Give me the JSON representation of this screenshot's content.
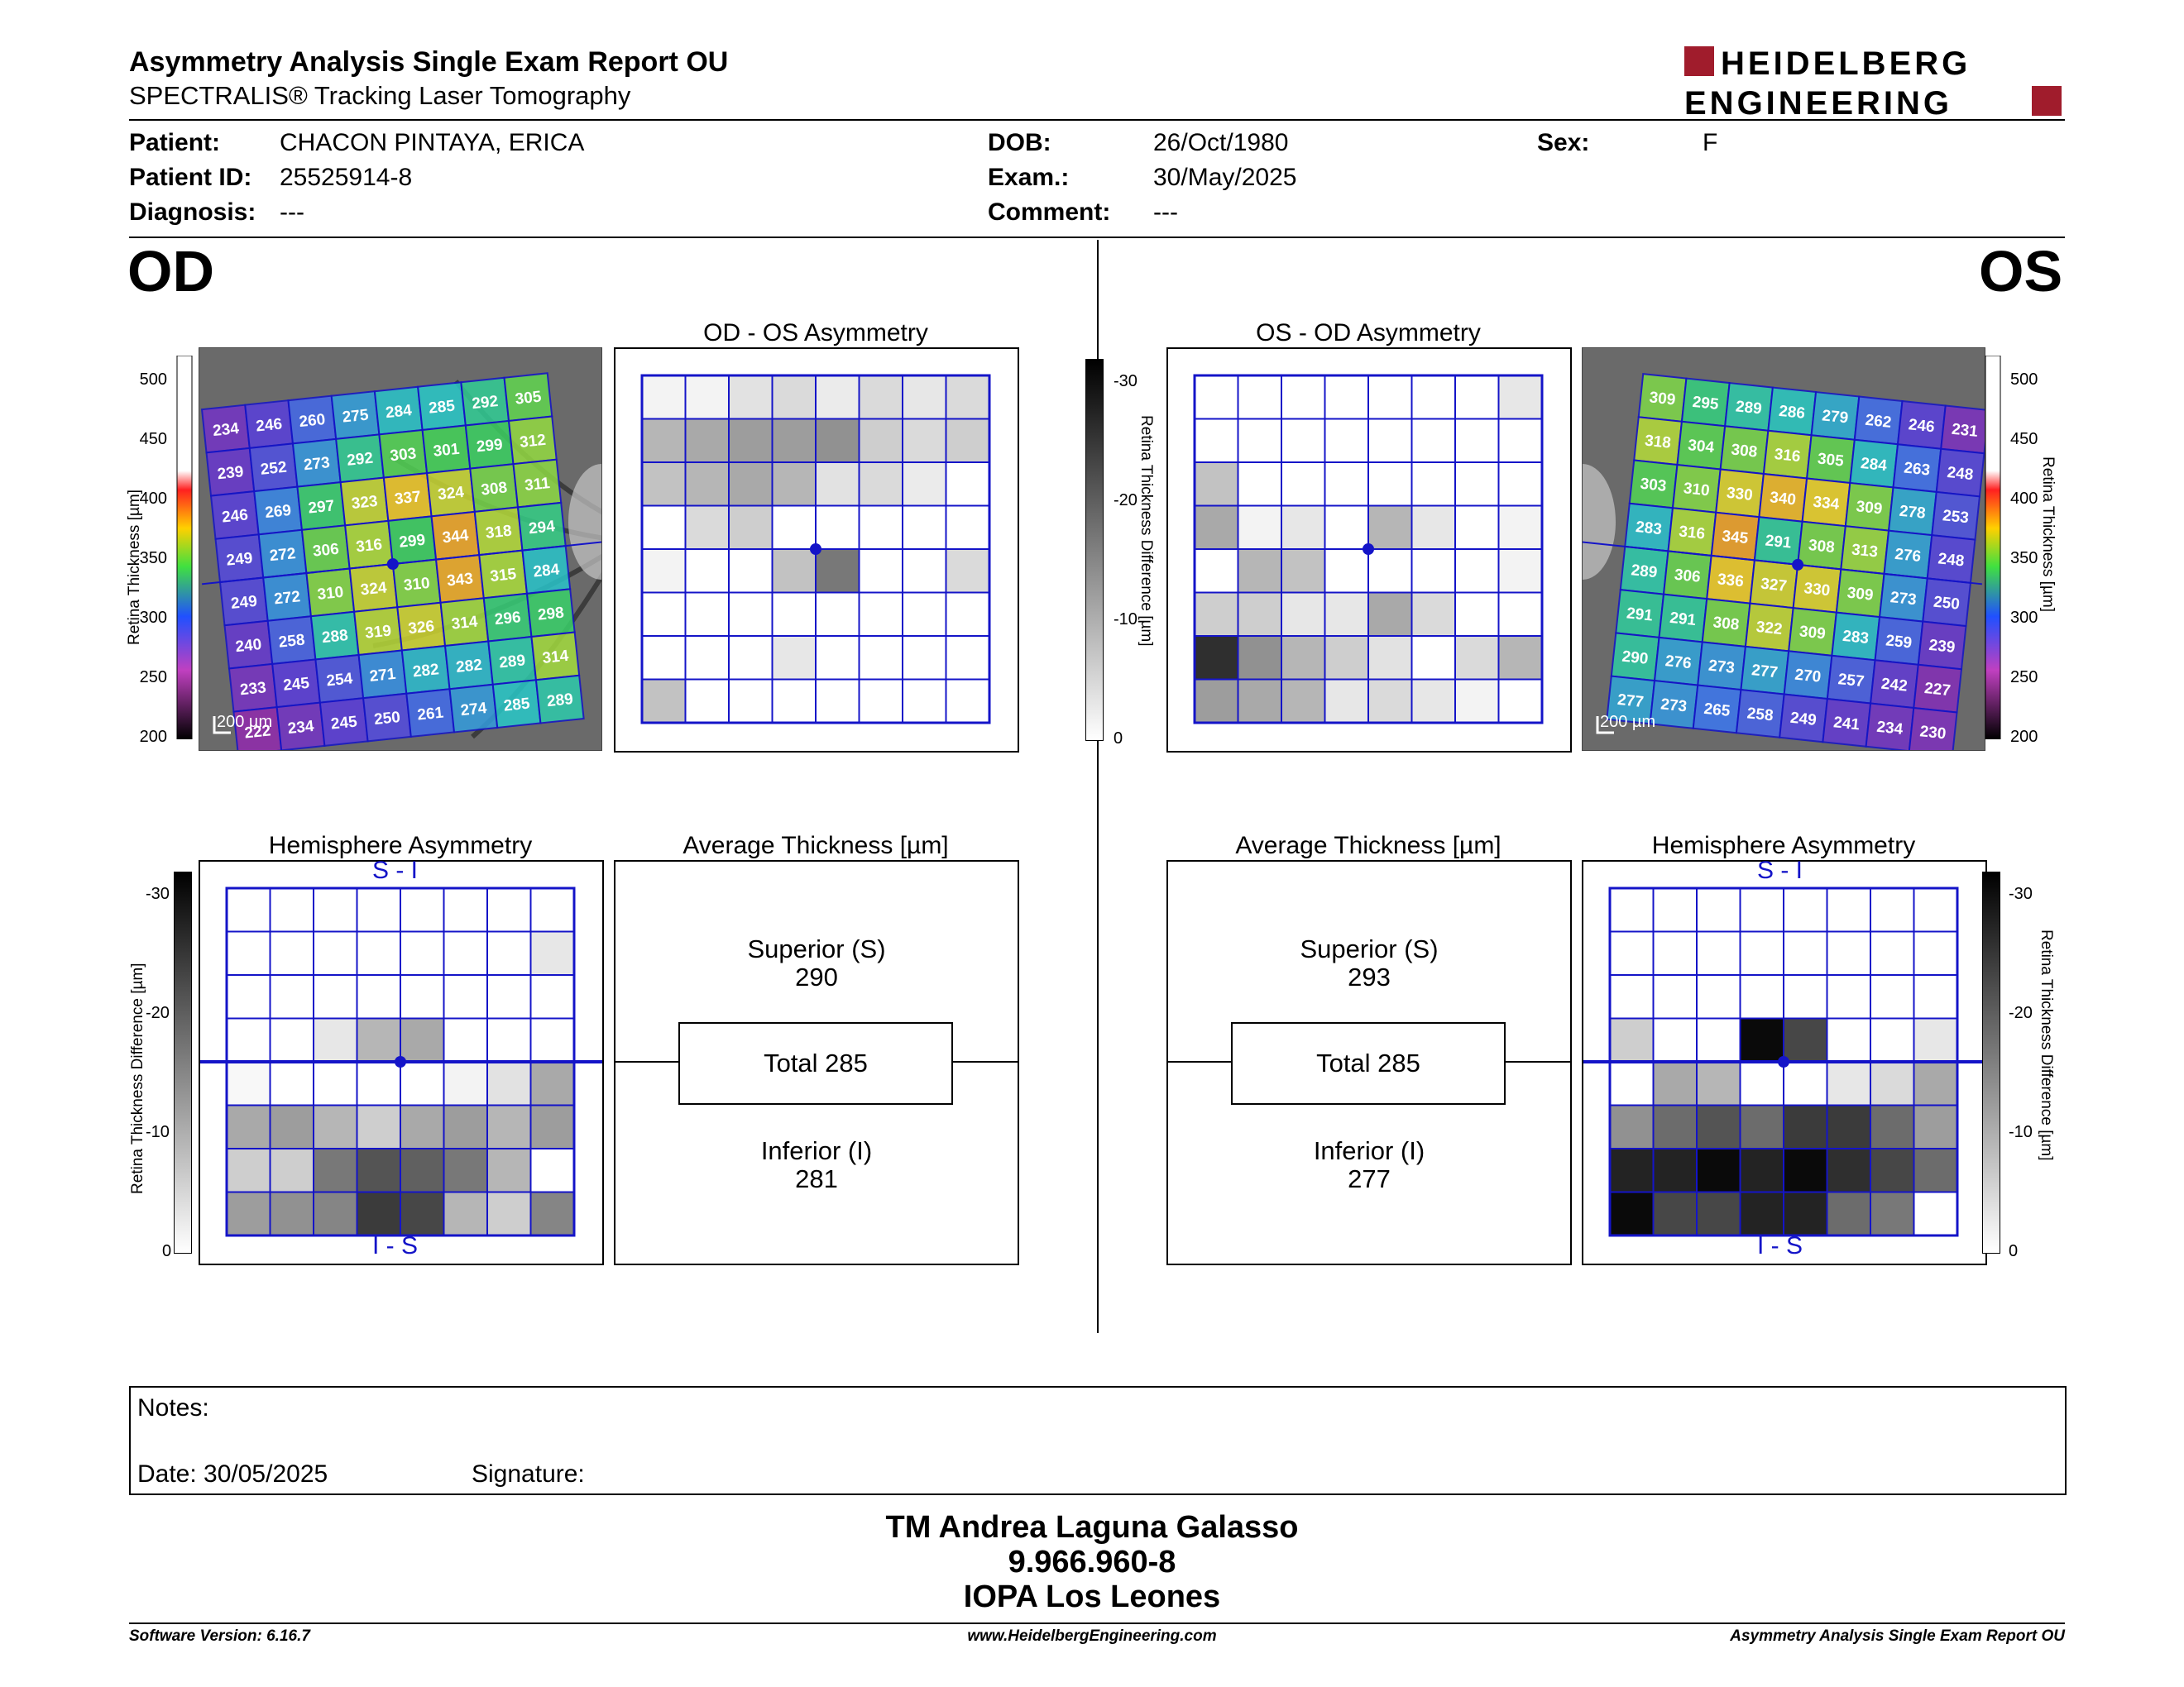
{
  "header": {
    "title": "Asymmetry Analysis Single Exam Report OU",
    "subtitle": "SPECTRALIS® Tracking Laser Tomography",
    "logo_line1": "HEIDELBERG",
    "logo_line2": "ENGINEERING"
  },
  "patient": {
    "patient_label": "Patient:",
    "patient_value": "CHACON PINTAYA, ERICA",
    "id_label": "Patient ID:",
    "id_value": "25525914-8",
    "diagnosis_label": "Diagnosis:",
    "diagnosis_value": "---",
    "dob_label": "DOB:",
    "dob_value": "26/Oct/1980",
    "exam_label": "Exam.:",
    "exam_value": "30/May/2025",
    "comment_label": "Comment:",
    "comment_value": "---",
    "sex_label": "Sex:",
    "sex_value": "F"
  },
  "od": {
    "eye_label": "OD",
    "asym_title": "OD - OS Asymmetry",
    "hemi_title": "Hemisphere Asymmetry",
    "avg_title": "Average Thickness [µm]",
    "superior_label": "Superior (S)",
    "superior_value": "290",
    "total": "Total 285",
    "inferior_label": "Inferior (I)",
    "inferior_value": "281",
    "scale_bar": "200 µm",
    "thickness_grid": [
      [
        234,
        246,
        260,
        275,
        284,
        285,
        292,
        305
      ],
      [
        239,
        252,
        273,
        292,
        303,
        301,
        299,
        312
      ],
      [
        246,
        269,
        297,
        323,
        337,
        324,
        308,
        311
      ],
      [
        249,
        272,
        306,
        316,
        299,
        344,
        318,
        294
      ],
      [
        249,
        272,
        310,
        324,
        310,
        343,
        315,
        284
      ],
      [
        240,
        258,
        288,
        319,
        326,
        314,
        296,
        298
      ],
      [
        233,
        245,
        254,
        271,
        282,
        282,
        289,
        314
      ],
      [
        222,
        234,
        245,
        250,
        261,
        274,
        285,
        289
      ]
    ],
    "asym_grid": [
      [
        0.05,
        0.05,
        0.12,
        0.15,
        0.08,
        0.15,
        0.1,
        0.15
      ],
      [
        0.3,
        0.35,
        0.4,
        0.4,
        0.45,
        0.2,
        0.15,
        0.2
      ],
      [
        0.25,
        0.3,
        0.35,
        0.3,
        0.12,
        0.15,
        0.08,
        0
      ],
      [
        0,
        0.15,
        0.2,
        0,
        0,
        0,
        0,
        0
      ],
      [
        0.05,
        0,
        0,
        0.25,
        0.55,
        0,
        0,
        0.15
      ],
      [
        0,
        0,
        0,
        0,
        0,
        0,
        0,
        0
      ],
      [
        0,
        0,
        0,
        0.1,
        0,
        0,
        0,
        0
      ],
      [
        0.25,
        0,
        0,
        0,
        0,
        0,
        0,
        0
      ]
    ],
    "hemi_grid": [
      [
        0,
        0,
        0,
        0,
        0,
        0,
        0,
        0
      ],
      [
        0,
        0,
        0,
        0,
        0,
        0,
        0,
        0.1
      ],
      [
        0,
        0,
        0,
        0,
        0,
        0,
        0,
        0
      ],
      [
        0,
        0,
        0.1,
        0.3,
        0.35,
        0,
        0,
        0
      ],
      [
        0.03,
        0,
        0,
        0,
        0,
        0.05,
        0.12,
        0.35
      ],
      [
        0.35,
        0.4,
        0.3,
        0.2,
        0.35,
        0.4,
        0.3,
        0.4
      ],
      [
        0.2,
        0.2,
        0.55,
        0.7,
        0.65,
        0.55,
        0.3,
        0
      ],
      [
        0.4,
        0.45,
        0.5,
        0.8,
        0.75,
        0.3,
        0.2,
        0.5
      ]
    ],
    "hemi_top": "S - I",
    "hemi_bottom": "I - S"
  },
  "os": {
    "eye_label": "OS",
    "asym_title": "OS - OD Asymmetry",
    "hemi_title": "Hemisphere Asymmetry",
    "avg_title": "Average Thickness [µm]",
    "superior_label": "Superior (S)",
    "superior_value": "293",
    "total": "Total 285",
    "inferior_label": "Inferior (I)",
    "inferior_value": "277",
    "scale_bar": "200 µm",
    "thickness_grid": [
      [
        309,
        295,
        289,
        286,
        279,
        262,
        246,
        231
      ],
      [
        318,
        304,
        308,
        316,
        305,
        284,
        263,
        248
      ],
      [
        303,
        310,
        330,
        340,
        334,
        309,
        278,
        253
      ],
      [
        283,
        316,
        345,
        291,
        308,
        313,
        276,
        248
      ],
      [
        289,
        306,
        336,
        327,
        330,
        309,
        273,
        250
      ],
      [
        291,
        291,
        308,
        322,
        309,
        283,
        259,
        239
      ],
      [
        290,
        276,
        273,
        277,
        270,
        257,
        242,
        227
      ],
      [
        277,
        273,
        265,
        258,
        249,
        241,
        234,
        230
      ]
    ],
    "asym_grid": [
      [
        0,
        0,
        0,
        0,
        0,
        0,
        0,
        0.1
      ],
      [
        0,
        0,
        0,
        0,
        0,
        0,
        0,
        0
      ],
      [
        0.25,
        0,
        0,
        0,
        0,
        0,
        0,
        0
      ],
      [
        0.35,
        0.05,
        0.1,
        0,
        0.3,
        0.1,
        0,
        0.05
      ],
      [
        0,
        0.3,
        0.25,
        0,
        0,
        0,
        0,
        0.05
      ],
      [
        0.2,
        0.2,
        0.1,
        0.1,
        0.35,
        0.15,
        0,
        0
      ],
      [
        0.85,
        0.45,
        0.3,
        0.2,
        0.12,
        0,
        0.15,
        0.3
      ],
      [
        0.4,
        0.35,
        0.3,
        0.1,
        0.15,
        0.1,
        0.05,
        0
      ]
    ],
    "hemi_grid": [
      [
        0,
        0,
        0,
        0,
        0,
        0,
        0,
        0
      ],
      [
        0,
        0,
        0,
        0,
        0,
        0,
        0,
        0
      ],
      [
        0,
        0,
        0,
        0,
        0,
        0,
        0,
        0
      ],
      [
        0.2,
        0,
        0,
        1.0,
        0.75,
        0,
        0,
        0.1
      ],
      [
        0,
        0.35,
        0.3,
        0,
        0,
        0.1,
        0.15,
        0.35
      ],
      [
        0.45,
        0.6,
        0.7,
        0.6,
        0.8,
        0.8,
        0.6,
        0.4
      ],
      [
        0.9,
        0.9,
        1.0,
        0.9,
        1.0,
        0.85,
        0.75,
        0.6
      ],
      [
        1.0,
        0.75,
        0.75,
        0.9,
        0.9,
        0.6,
        0.55,
        0
      ]
    ],
    "hemi_top": "S - I",
    "hemi_bottom": "I - S"
  },
  "scales": {
    "thickness_label": "Retina Thickness [µm]",
    "thickness_ticks": [
      "500",
      "450",
      "400",
      "350",
      "300",
      "250",
      "200"
    ],
    "diff_label": "Retina Thickness Difference [µm]",
    "diff_ticks": [
      "-30",
      "-20",
      "-10",
      "0"
    ]
  },
  "notes": {
    "notes_label": "Notes:",
    "date_label": "Date: 30/05/2025",
    "signature_label": "Signature:"
  },
  "signature_block": {
    "name": "TM Andrea Laguna Galasso",
    "id": "9.966.960-8",
    "org": "IOPA Los Leones"
  },
  "footer": {
    "software": "Software Version: 6.16.7",
    "website": "www.HeidelbergEngineering.com",
    "report": "Asymmetry Analysis Single Exam Report OU"
  },
  "colors": {
    "grid_blue": "#1414c8",
    "logo_red": "#a01c2c"
  }
}
